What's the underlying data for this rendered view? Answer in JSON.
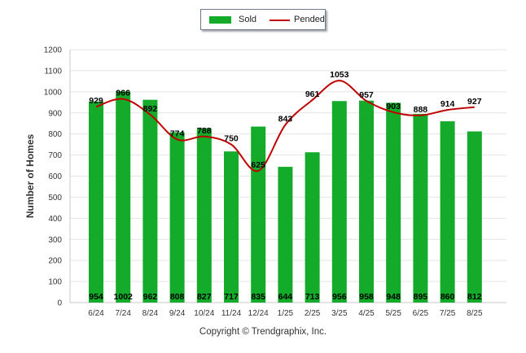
{
  "chart_data": {
    "type": "bar",
    "title": "",
    "xlabel": "",
    "ylabel": "Number of Homes",
    "ylim": [
      0,
      1200
    ],
    "yticks": [
      0,
      100,
      200,
      300,
      400,
      500,
      600,
      700,
      800,
      900,
      1000,
      1100,
      1200
    ],
    "grid": true,
    "legend_position": "top-center",
    "categories": [
      "6/24",
      "7/24",
      "8/24",
      "9/24",
      "10/24",
      "11/24",
      "12/24",
      "1/25",
      "2/25",
      "3/25",
      "4/25",
      "5/25",
      "6/25",
      "7/25",
      "8/25"
    ],
    "series": [
      {
        "name": "Sold",
        "type": "bar",
        "color": "#14aa2a",
        "values": [
          954,
          1002,
          962,
          808,
          827,
          717,
          835,
          644,
          713,
          956,
          958,
          948,
          895,
          860,
          812
        ]
      },
      {
        "name": "Pended",
        "type": "line",
        "color": "#c00000",
        "values": [
          929,
          966,
          892,
          774,
          788,
          750,
          625,
          843,
          961,
          1053,
          957,
          903,
          888,
          914,
          927
        ]
      }
    ]
  },
  "footer": {
    "copyright": "Copyright © Trendgraphix, Inc."
  }
}
